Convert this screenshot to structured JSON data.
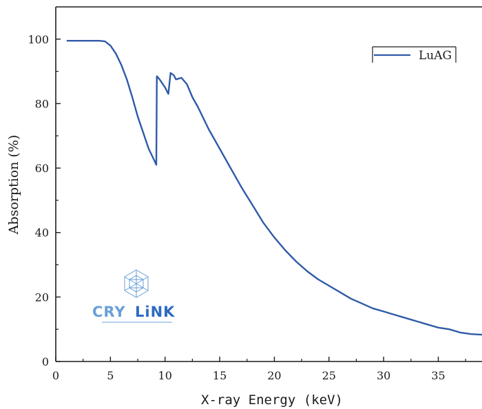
{
  "chart_data": {
    "type": "line",
    "title": "",
    "xlabel": "X-ray Energy (keV)",
    "ylabel": "Absorption (%)",
    "xlim": [
      0,
      39
    ],
    "ylim": [
      0,
      110
    ],
    "x_ticks": [
      0,
      5,
      10,
      15,
      20,
      25,
      30,
      35
    ],
    "y_ticks": [
      0,
      20,
      40,
      60,
      80,
      100
    ],
    "grid": false,
    "legend_position": "top-right",
    "series": [
      {
        "name": "LuAG",
        "color": "#2e5aa8",
        "points": [
          [
            1,
            99.5
          ],
          [
            2,
            99.5
          ],
          [
            3,
            99.5
          ],
          [
            4,
            99.5
          ],
          [
            4.5,
            99.3
          ],
          [
            5,
            98
          ],
          [
            5.5,
            95.5
          ],
          [
            6,
            92
          ],
          [
            6.5,
            87.5
          ],
          [
            7,
            82
          ],
          [
            7.5,
            76
          ],
          [
            8,
            71
          ],
          [
            8.5,
            66
          ],
          [
            9,
            62.5
          ],
          [
            9.2,
            61
          ],
          [
            9.25,
            88.5
          ],
          [
            9.5,
            87.5
          ],
          [
            10,
            85
          ],
          [
            10.3,
            83
          ],
          [
            10.5,
            89.5
          ],
          [
            10.8,
            88.8
          ],
          [
            11,
            87.5
          ],
          [
            11.5,
            88
          ],
          [
            12,
            86
          ],
          [
            12.5,
            82
          ],
          [
            13,
            79
          ],
          [
            14,
            72
          ],
          [
            15,
            66
          ],
          [
            16,
            60
          ],
          [
            17,
            54
          ],
          [
            18,
            48.5
          ],
          [
            19,
            43
          ],
          [
            20,
            38.5
          ],
          [
            21,
            34.5
          ],
          [
            22,
            31
          ],
          [
            23,
            28
          ],
          [
            24,
            25.5
          ],
          [
            25,
            23.5
          ],
          [
            26,
            21.5
          ],
          [
            27,
            19.5
          ],
          [
            28,
            18
          ],
          [
            29,
            16.5
          ],
          [
            30,
            15.5
          ],
          [
            31,
            14.5
          ],
          [
            32,
            13.5
          ],
          [
            33,
            12.5
          ],
          [
            34,
            11.5
          ],
          [
            35,
            10.5
          ],
          [
            36,
            10
          ],
          [
            37,
            9
          ],
          [
            38,
            8.5
          ],
          [
            39,
            8.3
          ]
        ]
      }
    ]
  },
  "logo": {
    "wordmark_left": "CRY",
    "wordmark_right": "LiNK",
    "icon": "crystal-lattice-icon",
    "color_left": "#6a9fd8",
    "color_right": "#2e6bc0"
  }
}
